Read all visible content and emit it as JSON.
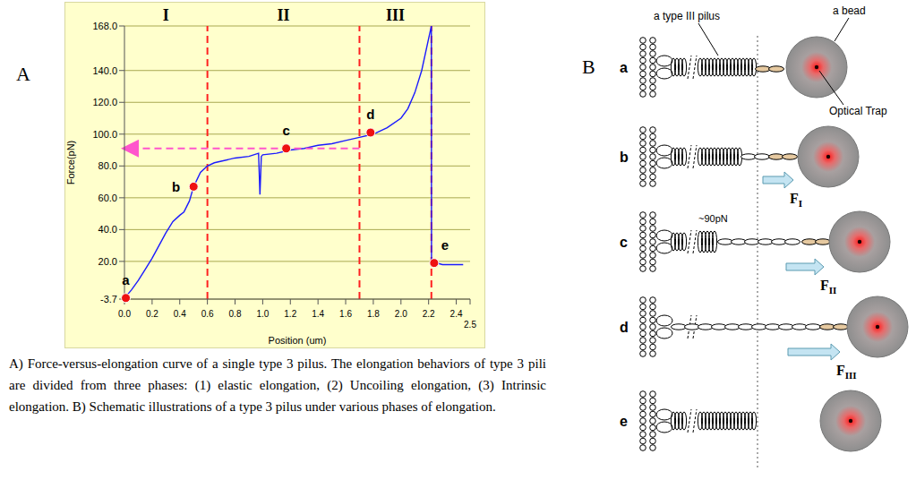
{
  "chart_data": {
    "type": "line",
    "panel_label": "A",
    "x_label": "Position (um)",
    "y_label": "Force(pN)",
    "color": "#1a1aff",
    "x": [
      0,
      0.05,
      0.1,
      0.15,
      0.2,
      0.25,
      0.3,
      0.35,
      0.4,
      0.43,
      0.47,
      0.5,
      0.55,
      0.6,
      0.65,
      0.7,
      0.8,
      0.9,
      0.97,
      0.98,
      0.99,
      1.0,
      1.1,
      1.2,
      1.3,
      1.4,
      1.5,
      1.6,
      1.7,
      1.8,
      1.9,
      2.0,
      2.05,
      2.1,
      2.15,
      2.2,
      2.22,
      2.221,
      2.3,
      2.4,
      2.45
    ],
    "values": [
      -3,
      2,
      8,
      15,
      22,
      30,
      38,
      45,
      49,
      51,
      58,
      67,
      76,
      80,
      82,
      83,
      85,
      86,
      88,
      62,
      86,
      87,
      88,
      90,
      91,
      93,
      94,
      96,
      98,
      100,
      104,
      110,
      116,
      126,
      140,
      160,
      168,
      20,
      18,
      18,
      18
    ],
    "xlim": [
      0,
      2.5
    ],
    "ylim": [
      -3.7,
      168
    ],
    "xticks": [
      {
        "value": 0,
        "label": "0.0"
      },
      0.2,
      0.4,
      0.6,
      0.8,
      {
        "value": 1,
        "label": "1.0"
      },
      1.2,
      1.4,
      1.6,
      1.8,
      {
        "value": 2,
        "label": "2.0"
      },
      2.2,
      2.4,
      2.5
    ],
    "yticks": [
      -3.7,
      {
        "value": 20,
        "label": "20.0"
      },
      {
        "value": 40,
        "label": "40.0"
      },
      {
        "value": 60,
        "label": "60.0"
      },
      {
        "value": 80,
        "label": "80.0"
      },
      {
        "value": 100,
        "label": "100.0"
      },
      {
        "value": 120,
        "label": "120.0"
      },
      {
        "value": 140,
        "label": "140.0"
      },
      {
        "value": 168,
        "label": "168.0"
      }
    ],
    "grid": true,
    "phases": [
      {
        "label": "I",
        "start": 0,
        "end": 0.6
      },
      {
        "label": "II",
        "start": 0.6,
        "end": 1.7
      },
      {
        "label": "III",
        "start": 1.7,
        "end": 2.22
      }
    ],
    "points": [
      {
        "label": "a",
        "x": 0.01,
        "y": -3
      },
      {
        "label": "b",
        "x": 0.5,
        "y": 67
      },
      {
        "label": "c",
        "x": 1.17,
        "y": 91
      },
      {
        "label": "d",
        "x": 1.78,
        "y": 101
      },
      {
        "label": "e",
        "x": 2.24,
        "y": 19
      }
    ],
    "arrow": {
      "y": 91,
      "from": 1.7,
      "to": 0
    }
  },
  "caption": "A) Force-versus-elongation curve of a single type 3 pilus. The elongation behaviors of type 3 pili are divided from three phases: (1) elastic elongation, (2) Uncoiling elongation, (3) Intrinsic elongation. B) Schematic illustrations of a type 3 pilus under various phases of elongation.",
  "panel_b": {
    "panel_label": "B",
    "rows": [
      "a",
      "b",
      "c",
      "d",
      "e"
    ],
    "pilus_label": "a type III pilus",
    "bead_label": "a bead",
    "trap_label": "Optical Trap",
    "force_value_label": "~90pN",
    "forces": [
      {
        "main": "F",
        "sub": "I"
      },
      {
        "main": "F",
        "sub": "II"
      },
      {
        "main": "F",
        "sub": "III"
      }
    ]
  }
}
